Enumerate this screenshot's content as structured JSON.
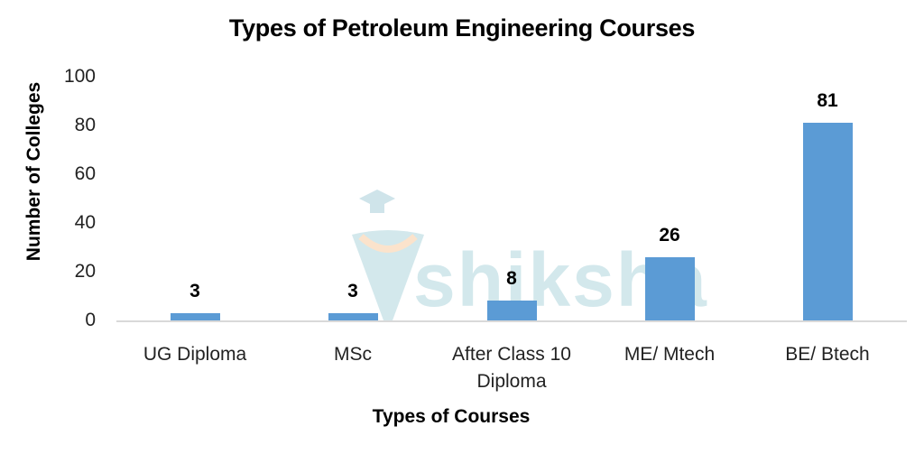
{
  "chart_data": {
    "type": "bar",
    "title": "Types of Petroleum Engineering Courses",
    "xlabel": "Types of Courses",
    "ylabel": "Number of Colleges",
    "categories": [
      "UG Diploma",
      "MSc",
      "After Class 10 Diploma",
      "ME/ Mtech",
      "BE/ Btech"
    ],
    "values": [
      3,
      3,
      8,
      26,
      81
    ],
    "data_labels": [
      "3",
      "3",
      "8",
      "26",
      "81"
    ],
    "ylim": [
      0,
      100
    ],
    "yticks": [
      "0",
      "20",
      "40",
      "60",
      "80",
      "100"
    ],
    "grid": false,
    "legend": null,
    "bar_color": "#5b9bd5"
  },
  "category_lines": [
    [
      "UG Diploma"
    ],
    [
      "MSc"
    ],
    [
      "After Class 10",
      "Diploma"
    ],
    [
      "ME/ Mtech"
    ],
    [
      "BE/ Btech"
    ]
  ],
  "watermark": {
    "text": "shiksha",
    "icon": "graduate-cap-logo-icon"
  }
}
